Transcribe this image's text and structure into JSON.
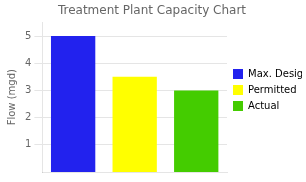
{
  "chart_data": {
    "type": "bar",
    "title": "Treatment Plant Capacity Chart",
    "categories": [
      "Max. Design",
      "Permitted",
      "Actual"
    ],
    "values": [
      5.0,
      3.5,
      3.0
    ],
    "colors": [
      "#2222EE",
      "#FFFF00",
      "#44CC00"
    ],
    "ylabel": "Flow (mgd)",
    "ylim": [
      0,
      5.5
    ],
    "yticks": [
      1,
      2,
      3,
      4,
      5
    ],
    "grid": true,
    "legend": "right",
    "tick_labels": "y"
  }
}
